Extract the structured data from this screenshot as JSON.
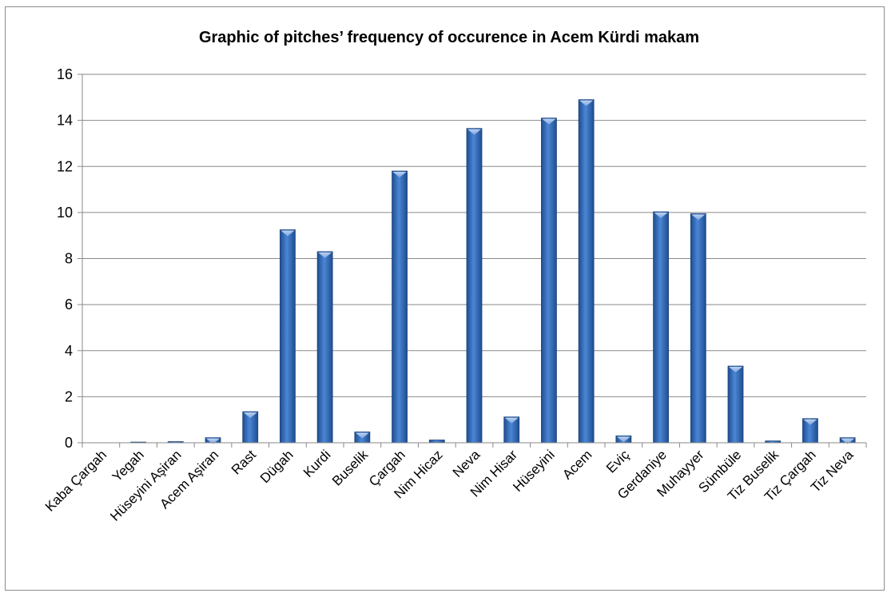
{
  "chart_data": {
    "type": "bar",
    "title": "Graphic of pitches’ frequency of occurence in Acem Kürdi makam",
    "xlabel": "",
    "ylabel": "",
    "ylim": [
      0,
      16
    ],
    "yticks": [
      0,
      2,
      4,
      6,
      8,
      10,
      12,
      14,
      16
    ],
    "grid": true,
    "legend": "none",
    "bar_color": "#3d74c4",
    "categories": [
      "Kaba Çargah",
      "Yegah",
      "Hüseyini Aşiran",
      "Acem Aşiran",
      "Rast",
      "Dügah",
      "Kurdi",
      "Buselik",
      "Çargah",
      "Nim Hicaz",
      "Neva",
      "Nim Hisar",
      "Hüseyini",
      "Acem",
      "Eviç",
      "Gerdaniye",
      "Muhayyer",
      "Sümbüle",
      "Tiz Buselik",
      "Tiz Çargah",
      "Tiz Neva"
    ],
    "values": [
      0,
      0.03,
      0.05,
      0.22,
      1.35,
      9.25,
      8.3,
      0.47,
      11.8,
      0.12,
      13.65,
      1.12,
      14.1,
      14.9,
      0.3,
      10.03,
      9.95,
      3.33,
      0.08,
      1.05,
      0.22
    ]
  }
}
